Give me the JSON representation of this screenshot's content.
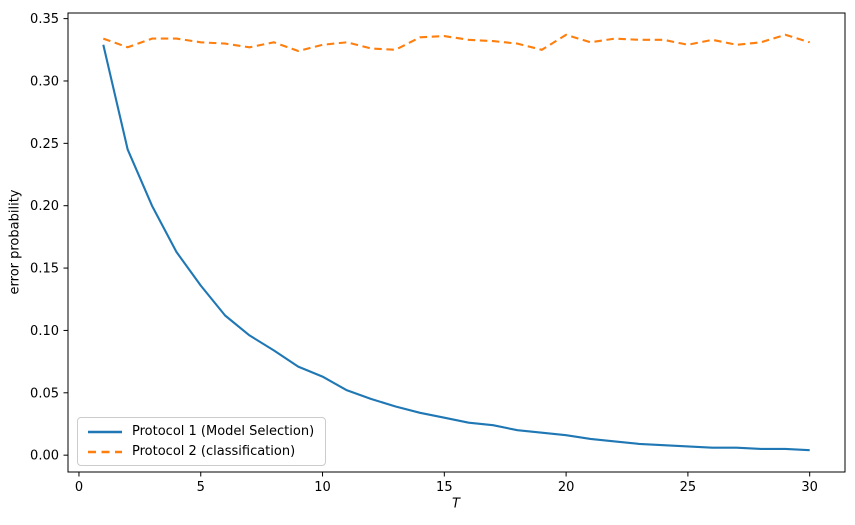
{
  "figure": {
    "background": "#ffffff"
  },
  "chart_data": {
    "type": "line",
    "title": "",
    "xlabel": "T",
    "ylabel": "error probability",
    "x": [
      1,
      2,
      3,
      4,
      5,
      6,
      7,
      8,
      9,
      10,
      11,
      12,
      13,
      14,
      15,
      16,
      17,
      18,
      19,
      20,
      21,
      22,
      23,
      24,
      25,
      26,
      27,
      28,
      29,
      30
    ],
    "series": [
      {
        "name": "Protocol 1 (Model Selection)",
        "color": "#1f77b4",
        "line_style": "solid",
        "values": [
          0.329,
          0.245,
          0.2,
          0.163,
          0.136,
          0.112,
          0.096,
          0.084,
          0.071,
          0.063,
          0.052,
          0.045,
          0.039,
          0.034,
          0.03,
          0.026,
          0.024,
          0.02,
          0.018,
          0.016,
          0.013,
          0.011,
          0.009,
          0.008,
          0.007,
          0.006,
          0.006,
          0.005,
          0.005,
          0.004
        ]
      },
      {
        "name": "Protocol 2 (classification)",
        "color": "#ff7f0e",
        "line_style": "dashed",
        "values": [
          0.334,
          0.327,
          0.334,
          0.334,
          0.331,
          0.33,
          0.327,
          0.331,
          0.324,
          0.329,
          0.331,
          0.326,
          0.325,
          0.335,
          0.336,
          0.333,
          0.332,
          0.33,
          0.325,
          0.337,
          0.331,
          0.334,
          0.333,
          0.333,
          0.329,
          0.333,
          0.329,
          0.331,
          0.337,
          0.331
        ]
      }
    ],
    "xlim": [
      -0.45,
      31.45
    ],
    "ylim": [
      -0.0135,
      0.3545
    ],
    "xticks": [
      0,
      5,
      10,
      15,
      20,
      25,
      30
    ],
    "xtick_labels": [
      "0",
      "5",
      "10",
      "15",
      "20",
      "25",
      "30"
    ],
    "yticks": [
      0.0,
      0.05,
      0.1,
      0.15,
      0.2,
      0.25,
      0.3,
      0.35
    ],
    "ytick_labels": [
      "0.00",
      "0.05",
      "0.10",
      "0.15",
      "0.20",
      "0.25",
      "0.30",
      "0.35"
    ],
    "legend": {
      "position": "lower left",
      "entries": [
        "Protocol 1 (Model Selection)",
        "Protocol 2 (classification)"
      ]
    },
    "grid": false,
    "axis_color": "#000000",
    "text_color": "#000000"
  }
}
